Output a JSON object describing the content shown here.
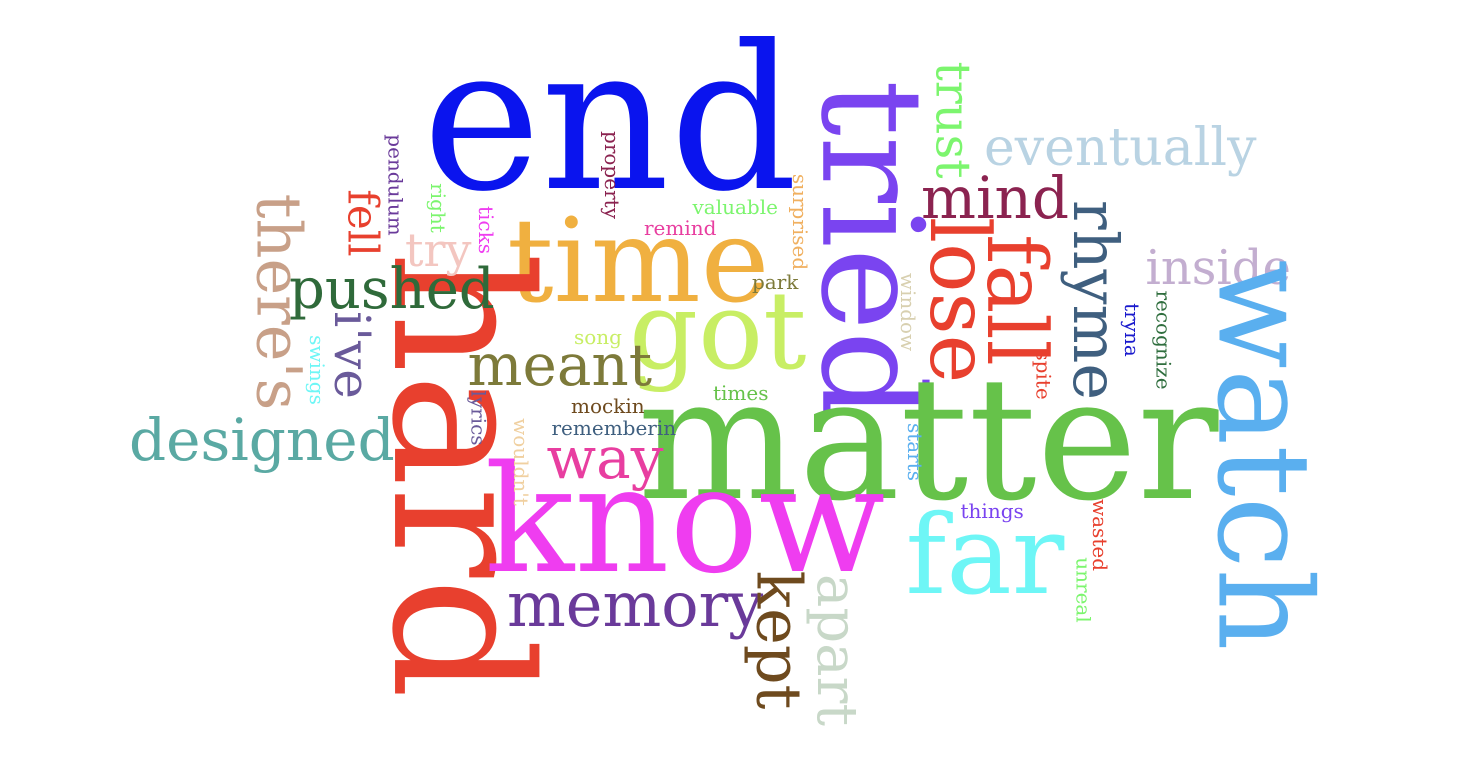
{
  "words": [
    {
      "key": "end",
      "text": "end",
      "color": "#0a14ee",
      "orientation": "horizontal"
    },
    {
      "key": "tried",
      "text": "tried",
      "color": "#7a44f0",
      "orientation": "vertical"
    },
    {
      "key": "trust",
      "text": "trust",
      "color": "#7cf56e",
      "orientation": "vertical"
    },
    {
      "key": "eventually",
      "text": "eventually",
      "color": "#b9d3e3",
      "orientation": "horizontal"
    },
    {
      "key": "mind",
      "text": "mind",
      "color": "#8b2350",
      "orientation": "horizontal"
    },
    {
      "key": "lose",
      "text": "lose",
      "color": "#e8402e",
      "orientation": "vertical"
    },
    {
      "key": "fall",
      "text": "fall",
      "color": "#e8402e",
      "orientation": "vertical"
    },
    {
      "key": "rhyme",
      "text": "rhyme",
      "color": "#3f5f7f",
      "orientation": "vertical"
    },
    {
      "key": "inside",
      "text": "inside",
      "color": "#c3aed0",
      "orientation": "horizontal"
    },
    {
      "key": "watch",
      "text": "watch",
      "color": "#5aafef",
      "orientation": "vertical"
    },
    {
      "key": "tryna",
      "text": "tryna",
      "color": "#1a1acd",
      "orientation": "vertical"
    },
    {
      "key": "recognize",
      "text": "recognize",
      "color": "#2f6e3e",
      "orientation": "vertical"
    },
    {
      "key": "time",
      "text": "time",
      "color": "#f0b040",
      "orientation": "horizontal"
    },
    {
      "key": "got",
      "text": "got",
      "color": "#c8ee64",
      "orientation": "horizontal"
    },
    {
      "key": "hard",
      "text": "hard",
      "color": "#e8402e",
      "orientation": "vertical"
    },
    {
      "key": "matter",
      "text": "matter",
      "color": "#66c24a",
      "orientation": "horizontal"
    },
    {
      "key": "know",
      "text": "know",
      "color": "#ef3df0",
      "orientation": "horizontal"
    },
    {
      "key": "far",
      "text": "far",
      "color": "#6ef6f6",
      "orientation": "horizontal"
    },
    {
      "key": "memory",
      "text": "memory",
      "color": "#6a3a9a",
      "orientation": "horizontal"
    },
    {
      "key": "kept",
      "text": "kept",
      "color": "#6e4a1e",
      "orientation": "vertical"
    },
    {
      "key": "apart",
      "text": "apart",
      "color": "#c8d8c8",
      "orientation": "vertical"
    },
    {
      "key": "way",
      "text": "way",
      "color": "#e83ea0",
      "orientation": "horizontal"
    },
    {
      "key": "meant",
      "text": "meant",
      "color": "#7d7a3a",
      "orientation": "horizontal"
    },
    {
      "key": "pushed",
      "text": "pushed",
      "color": "#2f6a3a",
      "orientation": "horizontal"
    },
    {
      "key": "designed",
      "text": "designed",
      "color": "#5aa9a3",
      "orientation": "horizontal"
    },
    {
      "key": "theres",
      "text": "there's",
      "color": "#c8a088",
      "orientation": "vertical"
    },
    {
      "key": "ive",
      "text": "i've",
      "color": "#6a5a9a",
      "orientation": "vertical"
    },
    {
      "key": "fell",
      "text": "fell",
      "color": "#e8402e",
      "orientation": "vertical"
    },
    {
      "key": "try",
      "text": "try",
      "color": "#f3c6c0",
      "orientation": "horizontal"
    },
    {
      "key": "pendulum",
      "text": "pendulum",
      "color": "#6a3a9a",
      "orientation": "vertical"
    },
    {
      "key": "right",
      "text": "right",
      "color": "#7cf56e",
      "orientation": "vertical"
    },
    {
      "key": "ticks",
      "text": "ticks",
      "color": "#ef3df0",
      "orientation": "vertical"
    },
    {
      "key": "property",
      "text": "property",
      "color": "#8b2350",
      "orientation": "vertical"
    },
    {
      "key": "valuable",
      "text": "valuable",
      "color": "#7cf56e",
      "orientation": "horizontal"
    },
    {
      "key": "remind",
      "text": "remind",
      "color": "#e83ea0",
      "orientation": "horizontal"
    },
    {
      "key": "surprised",
      "text": "surprised",
      "color": "#f0b060",
      "orientation": "vertical"
    },
    {
      "key": "park",
      "text": "park",
      "color": "#7d7a3a",
      "orientation": "horizontal"
    },
    {
      "key": "window",
      "text": "window",
      "color": "#d8d0b0",
      "orientation": "vertical"
    },
    {
      "key": "song",
      "text": "song",
      "color": "#c8ee64",
      "orientation": "horizontal"
    },
    {
      "key": "swings",
      "text": "swings",
      "color": "#6ef6f6",
      "orientation": "vertical"
    },
    {
      "key": "lyrics",
      "text": "lyrics",
      "color": "#6a5a9a",
      "orientation": "vertical"
    },
    {
      "key": "wouldnt",
      "text": "wouldn't",
      "color": "#f0d0a0",
      "orientation": "vertical"
    },
    {
      "key": "times",
      "text": "times",
      "color": "#66c24a",
      "orientation": "horizontal"
    },
    {
      "key": "mockin",
      "text": "mockin",
      "color": "#6e4a1e",
      "orientation": "horizontal"
    },
    {
      "key": "rememberin",
      "text": "rememberin",
      "color": "#3f5f7f",
      "orientation": "horizontal"
    },
    {
      "key": "spite",
      "text": "spite",
      "color": "#e8402e",
      "orientation": "vertical"
    },
    {
      "key": "starts",
      "text": "starts",
      "color": "#5aafef",
      "orientation": "vertical"
    },
    {
      "key": "things",
      "text": "things",
      "color": "#7a44f0",
      "orientation": "horizontal"
    },
    {
      "key": "wasted",
      "text": "wasted",
      "color": "#e8402e",
      "orientation": "vertical"
    },
    {
      "key": "unreal",
      "text": "unreal",
      "color": "#7cf56e",
      "orientation": "vertical"
    }
  ]
}
